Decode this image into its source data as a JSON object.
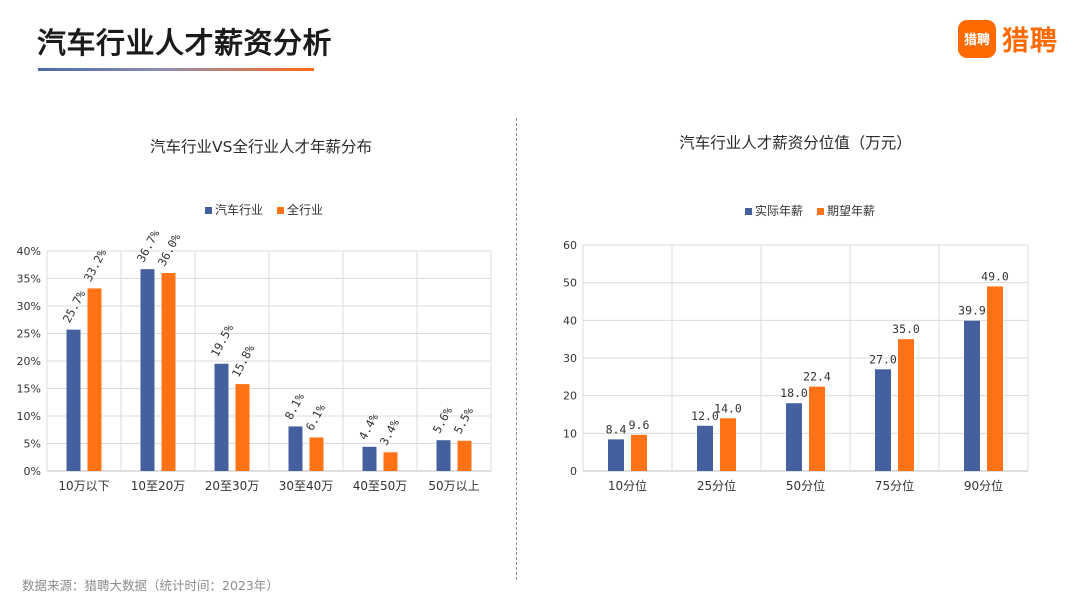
{
  "header": {
    "title": "汽车行业人才薪资分析",
    "logo_badge": "猎聘",
    "logo_text": "猎聘"
  },
  "footer": {
    "source": "数据来源：猎聘大数据（统计时间：2023年）"
  },
  "colors": {
    "blue": "#44609e",
    "orange": "#ff7316",
    "grid": "#d9d9d9",
    "accent": "#ff6a00"
  },
  "chart_data": [
    {
      "type": "bar",
      "title": "汽车行业VS全行业人才年薪分布",
      "categories": [
        "10万以下",
        "10至20万",
        "20至30万",
        "30至40万",
        "40至50万",
        "50万以上"
      ],
      "series": [
        {
          "name": "汽车行业",
          "values": [
            25.7,
            36.7,
            19.5,
            8.1,
            4.4,
            5.6
          ],
          "color": "#44609e"
        },
        {
          "name": "全行业",
          "values": [
            33.2,
            36.0,
            15.8,
            6.1,
            3.4,
            5.5
          ],
          "color": "#ff7316"
        }
      ],
      "data_labels": [
        [
          "25.7%",
          "36.7%",
          "19.5%",
          "8.1%",
          "4.4%",
          "5.6%"
        ],
        [
          "33.2%",
          "36.0%",
          "15.8%",
          "6.1%",
          "3.4%",
          "5.5%"
        ]
      ],
      "yticks": [
        "0%",
        "5%",
        "10%",
        "15%",
        "20%",
        "25%",
        "30%",
        "35%",
        "40%"
      ],
      "ylim": [
        0,
        40
      ],
      "grid": true,
      "legend": "top"
    },
    {
      "type": "bar",
      "title": "汽车行业人才薪资分位值（万元）",
      "categories": [
        "10分位",
        "25分位",
        "50分位",
        "75分位",
        "90分位"
      ],
      "series": [
        {
          "name": "实际年薪",
          "values": [
            8.4,
            12.0,
            18.0,
            27.0,
            39.9
          ],
          "color": "#44609e"
        },
        {
          "name": "期望年薪",
          "values": [
            9.6,
            14.0,
            22.4,
            35.0,
            49.0
          ],
          "color": "#ff7316"
        }
      ],
      "data_labels": [
        [
          "8.4",
          "12.0",
          "18.0",
          "27.0",
          "39.9"
        ],
        [
          "9.6",
          "14.0",
          "22.4",
          "35.0",
          "49.0"
        ]
      ],
      "yticks": [
        "0",
        "10",
        "20",
        "30",
        "40",
        "50",
        "60"
      ],
      "ylim": [
        0,
        60
      ],
      "grid": true,
      "legend": "top"
    }
  ]
}
